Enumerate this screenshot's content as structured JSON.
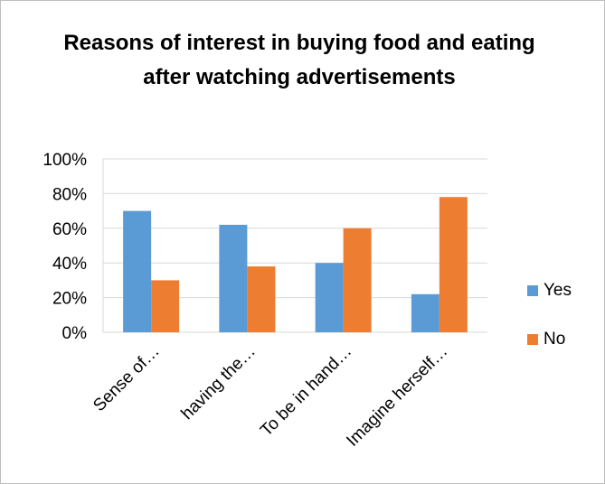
{
  "chart_data": {
    "type": "bar",
    "title": "Reasons of interest in buying food and eating after watching advertisements",
    "categories": [
      "Sense of…",
      "having the…",
      "To be in hand…",
      "Imagine herself…"
    ],
    "series": [
      {
        "name": "Yes",
        "values": [
          70,
          62,
          40,
          22
        ],
        "color": "#5b9bd5"
      },
      {
        "name": "No",
        "values": [
          30,
          38,
          60,
          78
        ],
        "color": "#ed7d31"
      }
    ],
    "ylim": [
      0,
      100
    ],
    "yticks": [
      "0%",
      "20%",
      "40%",
      "60%",
      "80%",
      "100%"
    ],
    "grid": true,
    "legend_position": "right"
  }
}
